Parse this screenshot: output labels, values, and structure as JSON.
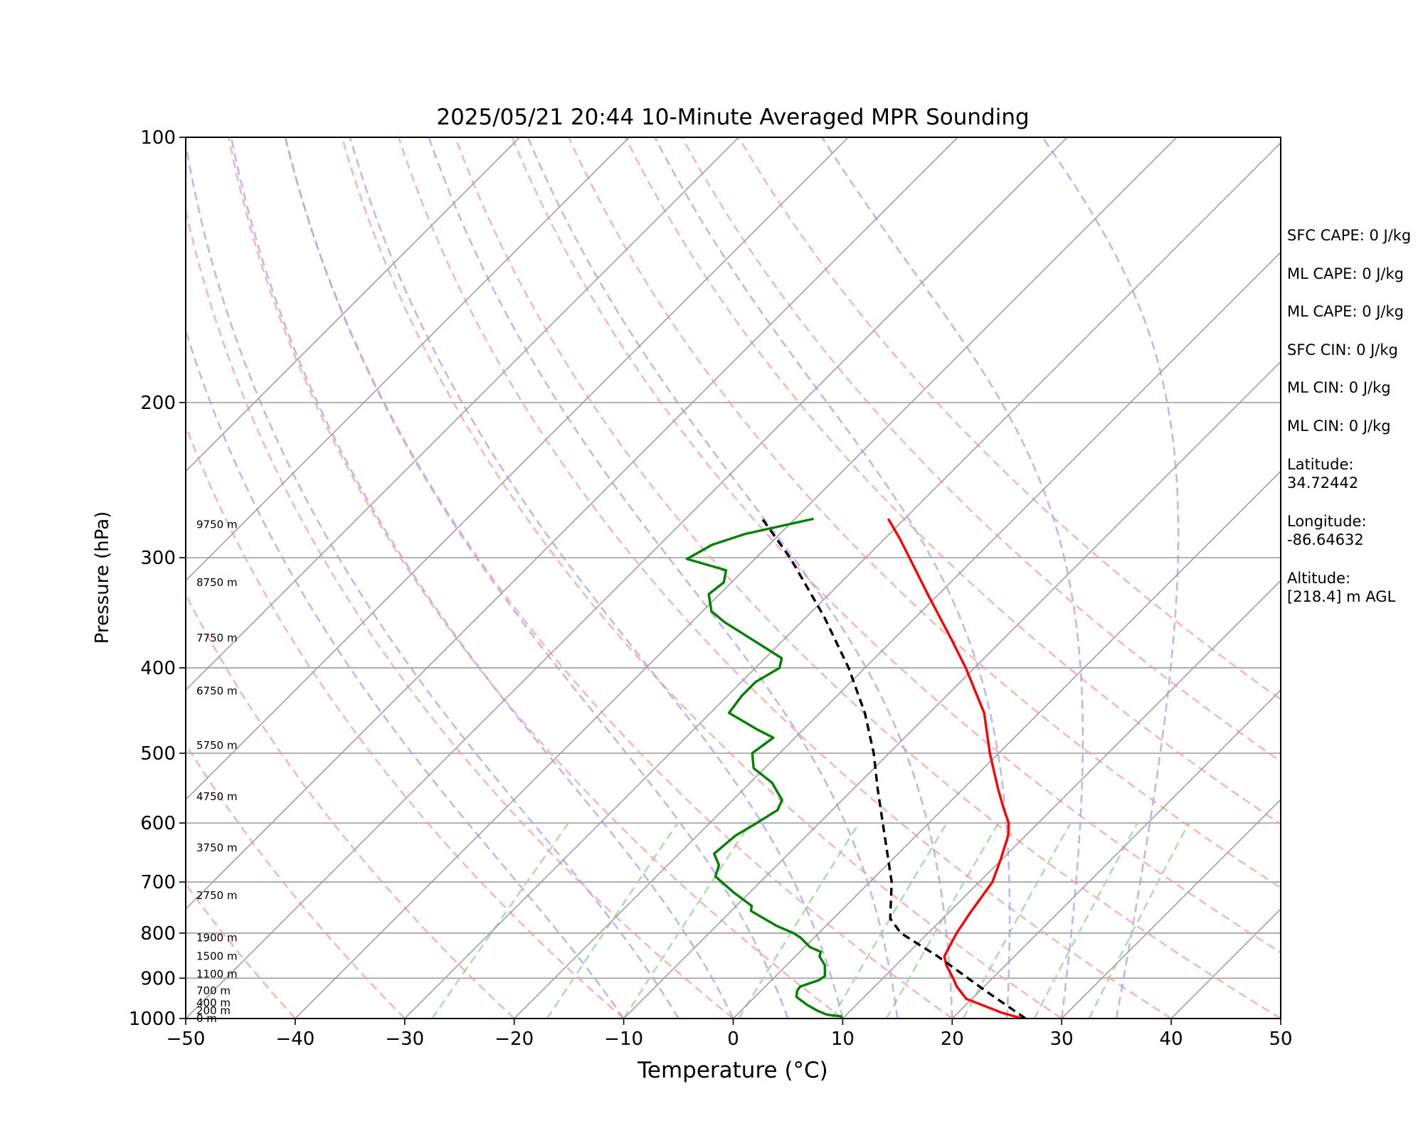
{
  "chart_data": {
    "type": "line",
    "subtype": "skew-T log-P sounding diagram",
    "title": "2025/05/21 20:44 10-Minute Averaged MPR Sounding",
    "xlabel": "Temperature (°C)",
    "ylabel": "Pressure (hPa)",
    "xlim": [
      -50,
      50
    ],
    "ylim": [
      1000,
      100
    ],
    "y_scale": "log",
    "grid": true,
    "x_ticks": [
      "−50",
      "−40",
      "−30",
      "−20",
      "−10",
      "0",
      "10",
      "20",
      "30",
      "40",
      "50"
    ],
    "y_ticks": [
      "100",
      "200",
      "300",
      "400",
      "500",
      "600",
      "700",
      "800",
      "900",
      "1000"
    ],
    "background_lines": {
      "isotherms": {
        "color": "#a0a0a0",
        "values_c": [
          -100,
          -90,
          -80,
          -70,
          -60,
          -50,
          -40,
          -30,
          -20,
          -10,
          0,
          10,
          20,
          30,
          40,
          50
        ]
      },
      "dry_adiabats": {
        "color": "#f4a0a0",
        "style": "dashed",
        "values_c_at_1000": [
          -40,
          -30,
          -20,
          -10,
          0,
          10,
          20,
          30,
          40,
          50,
          60,
          70,
          80,
          90,
          100
        ]
      },
      "moist_adiabats": {
        "color": "#a8a8f0",
        "style": "dashed",
        "values_c_at_1000": [
          -10,
          -5,
          0,
          5,
          10,
          15,
          20,
          25,
          30,
          35
        ]
      },
      "mixing_ratio_lines": {
        "color": "#a8d8a8",
        "style": "dashed",
        "values_c_at_1000": [
          -27.5,
          -17,
          -10,
          0.5,
          9,
          14,
          21,
          27.5,
          32.5
        ],
        "top_hpa": 600
      }
    },
    "series": [
      {
        "role": "temperature",
        "color": "#ff0000",
        "style": "solid",
        "points": [
          {
            "p": 1000,
            "t": 26.4
          },
          {
            "p": 985,
            "t": 24.0
          },
          {
            "p": 950,
            "t": 19.5
          },
          {
            "p": 920,
            "t": 17.5
          },
          {
            "p": 900,
            "t": 16.4
          },
          {
            "p": 870,
            "t": 14.6
          },
          {
            "p": 850,
            "t": 13.6
          },
          {
            "p": 820,
            "t": 13.0
          },
          {
            "p": 800,
            "t": 12.6
          },
          {
            "p": 760,
            "t": 12.0
          },
          {
            "p": 700,
            "t": 11.2
          },
          {
            "p": 660,
            "t": 9.9
          },
          {
            "p": 620,
            "t": 8.4
          },
          {
            "p": 600,
            "t": 7.3
          },
          {
            "p": 580,
            "t": 5.7
          },
          {
            "p": 550,
            "t": 3.3
          },
          {
            "p": 500,
            "t": -0.8
          },
          {
            "p": 450,
            "t": -5.0
          },
          {
            "p": 400,
            "t": -10.8
          },
          {
            "p": 370,
            "t": -14.9
          },
          {
            "p": 330,
            "t": -21.0
          },
          {
            "p": 300,
            "t": -26.0
          },
          {
            "p": 285,
            "t": -28.7
          },
          {
            "p": 271,
            "t": -31.5
          }
        ]
      },
      {
        "role": "dewpoint",
        "color": "#008000",
        "style": "solid",
        "points": [
          {
            "p": 995,
            "t": 9.8
          },
          {
            "p": 990,
            "t": 8.2
          },
          {
            "p": 980,
            "t": 7.0
          },
          {
            "p": 965,
            "t": 5.5
          },
          {
            "p": 945,
            "t": 3.8
          },
          {
            "p": 930,
            "t": 3.3
          },
          {
            "p": 920,
            "t": 3.2
          },
          {
            "p": 905,
            "t": 4.3
          },
          {
            "p": 895,
            "t": 4.5
          },
          {
            "p": 870,
            "t": 3.5
          },
          {
            "p": 850,
            "t": 2.2
          },
          {
            "p": 840,
            "t": 1.9
          },
          {
            "p": 830,
            "t": 0.5
          },
          {
            "p": 810,
            "t": -1.2
          },
          {
            "p": 800,
            "t": -2.3
          },
          {
            "p": 785,
            "t": -4.5
          },
          {
            "p": 755,
            "t": -8.2
          },
          {
            "p": 745,
            "t": -8.6
          },
          {
            "p": 720,
            "t": -11.4
          },
          {
            "p": 690,
            "t": -14.6
          },
          {
            "p": 670,
            "t": -15.3
          },
          {
            "p": 650,
            "t": -16.8
          },
          {
            "p": 620,
            "t": -16.5
          },
          {
            "p": 600,
            "t": -15.7
          },
          {
            "p": 580,
            "t": -15.0
          },
          {
            "p": 565,
            "t": -15.5
          },
          {
            "p": 540,
            "t": -18.0
          },
          {
            "p": 520,
            "t": -21.0
          },
          {
            "p": 500,
            "t": -22.5
          },
          {
            "p": 480,
            "t": -22.0
          },
          {
            "p": 470,
            "t": -24.2
          },
          {
            "p": 450,
            "t": -28.3
          },
          {
            "p": 430,
            "t": -28.7
          },
          {
            "p": 415,
            "t": -28.7
          },
          {
            "p": 400,
            "t": -27.8
          },
          {
            "p": 390,
            "t": -28.5
          },
          {
            "p": 355,
            "t": -37.0
          },
          {
            "p": 345,
            "t": -39.2
          },
          {
            "p": 330,
            "t": -41.0
          },
          {
            "p": 320,
            "t": -40.7
          },
          {
            "p": 310,
            "t": -41.6
          },
          {
            "p": 301,
            "t": -46.2
          },
          {
            "p": 290,
            "t": -45.2
          },
          {
            "p": 282,
            "t": -43.2
          },
          {
            "p": 271,
            "t": -38.3
          }
        ]
      },
      {
        "role": "parcel profile",
        "color": "#000000",
        "style": "dashed",
        "points": [
          {
            "p": 1000,
            "t": 26.7
          },
          {
            "p": 930,
            "t": 20.5
          },
          {
            "p": 850,
            "t": 13.0
          },
          {
            "p": 800,
            "t": 7.5
          },
          {
            "p": 770,
            "t": 5.2
          },
          {
            "p": 700,
            "t": 2.0
          },
          {
            "p": 600,
            "t": -4.2
          },
          {
            "p": 550,
            "t": -7.7
          },
          {
            "p": 500,
            "t": -11.4
          },
          {
            "p": 450,
            "t": -15.9
          },
          {
            "p": 400,
            "t": -21.5
          },
          {
            "p": 350,
            "t": -28.4
          },
          {
            "p": 300,
            "t": -36.9
          },
          {
            "p": 271,
            "t": -43.0
          }
        ]
      }
    ],
    "height_labels": [
      {
        "text": "0 m",
        "p": 1000
      },
      {
        "text": "200 m",
        "p": 980
      },
      {
        "text": "400 m",
        "p": 960
      },
      {
        "text": "700 m",
        "p": 930
      },
      {
        "text": "1100 m",
        "p": 890
      },
      {
        "text": "1500 m",
        "p": 850
      },
      {
        "text": "1900 m",
        "p": 810
      },
      {
        "text": "2750 m",
        "p": 725
      },
      {
        "text": "3750 m",
        "p": 640
      },
      {
        "text": "4750 m",
        "p": 560
      },
      {
        "text": "5750 m",
        "p": 490
      },
      {
        "text": "6750 m",
        "p": 425
      },
      {
        "text": "7750 m",
        "p": 370
      },
      {
        "text": "8750 m",
        "p": 320
      },
      {
        "text": "9750 m",
        "p": 275
      }
    ],
    "stats": [
      "SFC CAPE: 0 J/kg",
      "ML CAPE: 0 J/kg",
      "ML CAPE: 0 J/kg",
      "SFC CIN: 0 J/kg",
      "ML CIN: 0 J/kg",
      "ML CIN: 0 J/kg"
    ],
    "info": [
      {
        "label": "Latitude:",
        "value": "34.72442"
      },
      {
        "label": "Longitude:",
        "value": "-86.64632"
      },
      {
        "label": "Altitude:",
        "value": "[218.4] m AGL"
      }
    ]
  }
}
